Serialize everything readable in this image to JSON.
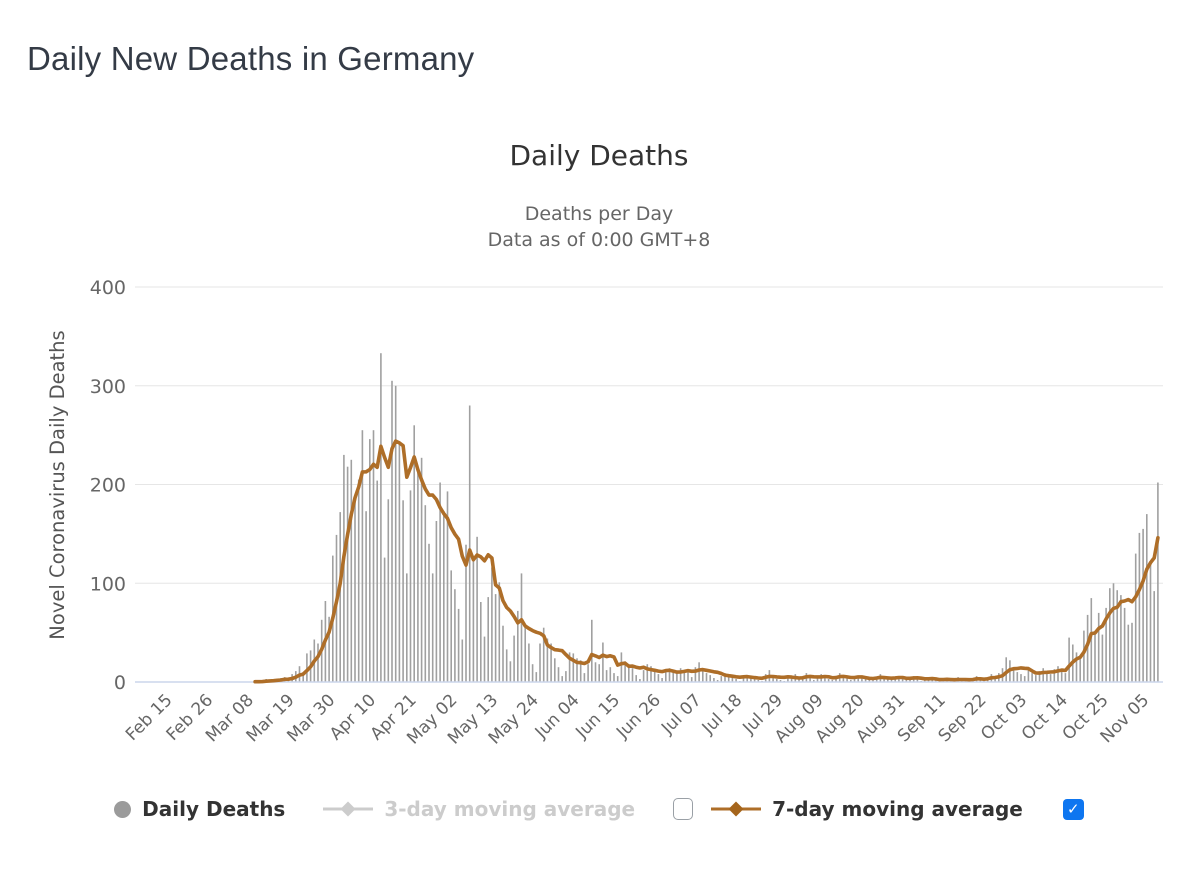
{
  "page": {
    "title": "Daily New Deaths in Germany"
  },
  "chart": {
    "title": "Daily Deaths",
    "subtitle_line1": "Deaths per Day",
    "subtitle_line2": "Data as of 0:00 GMT+8"
  },
  "legend": {
    "daily_deaths_label": "Daily Deaths",
    "ma3_label": "3-day moving average",
    "ma7_label": "7-day moving average",
    "ma3_checkbox_checked": false,
    "ma7_checkbox_checked": true
  },
  "icons": {
    "check": "✓"
  },
  "colors": {
    "bar_gray": "#a0a0a0",
    "ma7_brown": "#ae6e28",
    "ma3_gray": "#cccccc",
    "checkbox_blue": "#0e76f0",
    "axis_line": "#ccd6eb",
    "gridline": "#e6e6e6",
    "axis_text": "#666666",
    "title_text": "#333333"
  },
  "chart_data": {
    "type": "bar",
    "title": "Daily Deaths",
    "subtitle": "Deaths per Day — Data as of 0:00 GMT+8",
    "xlabel": "",
    "ylabel": "Novel Coronavirus Daily Deaths",
    "ylim": [
      0,
      400
    ],
    "yticks": [
      0,
      100,
      200,
      300,
      400
    ],
    "grid": true,
    "legend_position": "bottom",
    "x_start": "Feb 15",
    "x_end": "Nov 08",
    "xtick_labels": [
      "Feb 15",
      "Feb 26",
      "Mar 08",
      "Mar 19",
      "Mar 30",
      "Apr 10",
      "Apr 21",
      "May 02",
      "May 13",
      "May 24",
      "Jun 04",
      "Jun 15",
      "Jun 26",
      "Jul 07",
      "Jul 18",
      "Jul 29",
      "Aug 09",
      "Aug 20",
      "Aug 31",
      "Sep 11",
      "Sep 22",
      "Oct 03",
      "Oct 14",
      "Oct 25",
      "Nov 05"
    ],
    "xtick_interval_days": 11,
    "series": [
      {
        "name": "Daily Deaths",
        "type": "bar",
        "visible": true,
        "color": "#a0a0a0",
        "values": [
          0,
          0,
          0,
          0,
          0,
          0,
          0,
          0,
          0,
          0,
          0,
          0,
          0,
          0,
          0,
          0,
          0,
          0,
          0,
          0,
          0,
          0,
          0,
          2,
          0,
          1,
          3,
          2,
          1,
          3,
          4,
          5,
          2,
          8,
          11,
          16,
          10,
          29,
          32,
          43,
          39,
          63,
          82,
          66,
          128,
          149,
          172,
          230,
          218,
          225,
          184,
          205,
          255,
          173,
          246,
          255,
          204,
          333,
          126,
          185,
          305,
          300,
          242,
          184,
          110,
          194,
          260,
          215,
          227,
          179,
          140,
          110,
          163,
          202,
          173,
          193,
          113,
          94,
          74,
          43,
          139,
          280,
          123,
          147,
          81,
          46,
          86,
          116,
          89,
          101,
          57,
          33,
          21,
          47,
          72,
          110,
          57,
          39,
          18,
          10,
          39,
          55,
          44,
          39,
          24,
          15,
          6,
          11,
          30,
          29,
          24,
          22,
          9,
          18,
          63,
          20,
          18,
          40,
          12,
          15,
          9,
          6,
          30,
          21,
          18,
          14,
          7,
          3,
          12,
          18,
          16,
          13,
          8,
          4,
          10,
          14,
          12,
          9,
          14,
          12,
          10,
          5,
          15,
          20,
          12,
          9,
          7,
          4,
          2,
          6,
          9,
          8,
          5,
          3,
          1,
          5,
          7,
          6,
          4,
          2,
          1,
          8,
          12,
          6,
          3,
          2,
          1,
          5,
          6,
          8,
          3,
          5,
          9,
          4,
          2,
          5,
          8,
          6,
          3,
          2,
          5,
          9,
          7,
          4,
          2,
          3,
          6,
          5,
          4,
          2,
          3,
          5,
          8,
          4,
          3,
          2,
          4,
          6,
          5,
          2,
          4,
          6,
          3,
          1,
          2,
          5,
          3,
          2,
          1,
          4,
          2,
          1,
          3,
          5,
          2,
          1,
          2,
          4,
          6,
          3,
          2,
          5,
          8,
          4,
          9,
          14,
          25,
          22,
          12,
          10,
          8,
          6,
          12,
          9,
          7,
          11,
          14,
          10,
          8,
          13,
          16,
          12,
          9,
          45,
          38,
          30,
          25,
          52,
          68,
          85,
          49,
          70,
          48,
          75,
          95,
          100,
          93,
          88,
          75,
          58,
          60,
          130,
          151,
          155,
          170,
          122,
          92,
          202
        ]
      },
      {
        "name": "3-day moving average",
        "type": "line",
        "visible": false,
        "color": "#cccccc",
        "derived_from": "3-day moving average of Daily Deaths"
      },
      {
        "name": "7-day moving average",
        "type": "line",
        "visible": true,
        "color": "#ae6e28",
        "derived_from": "7-day moving average of Daily Deaths"
      }
    ]
  }
}
